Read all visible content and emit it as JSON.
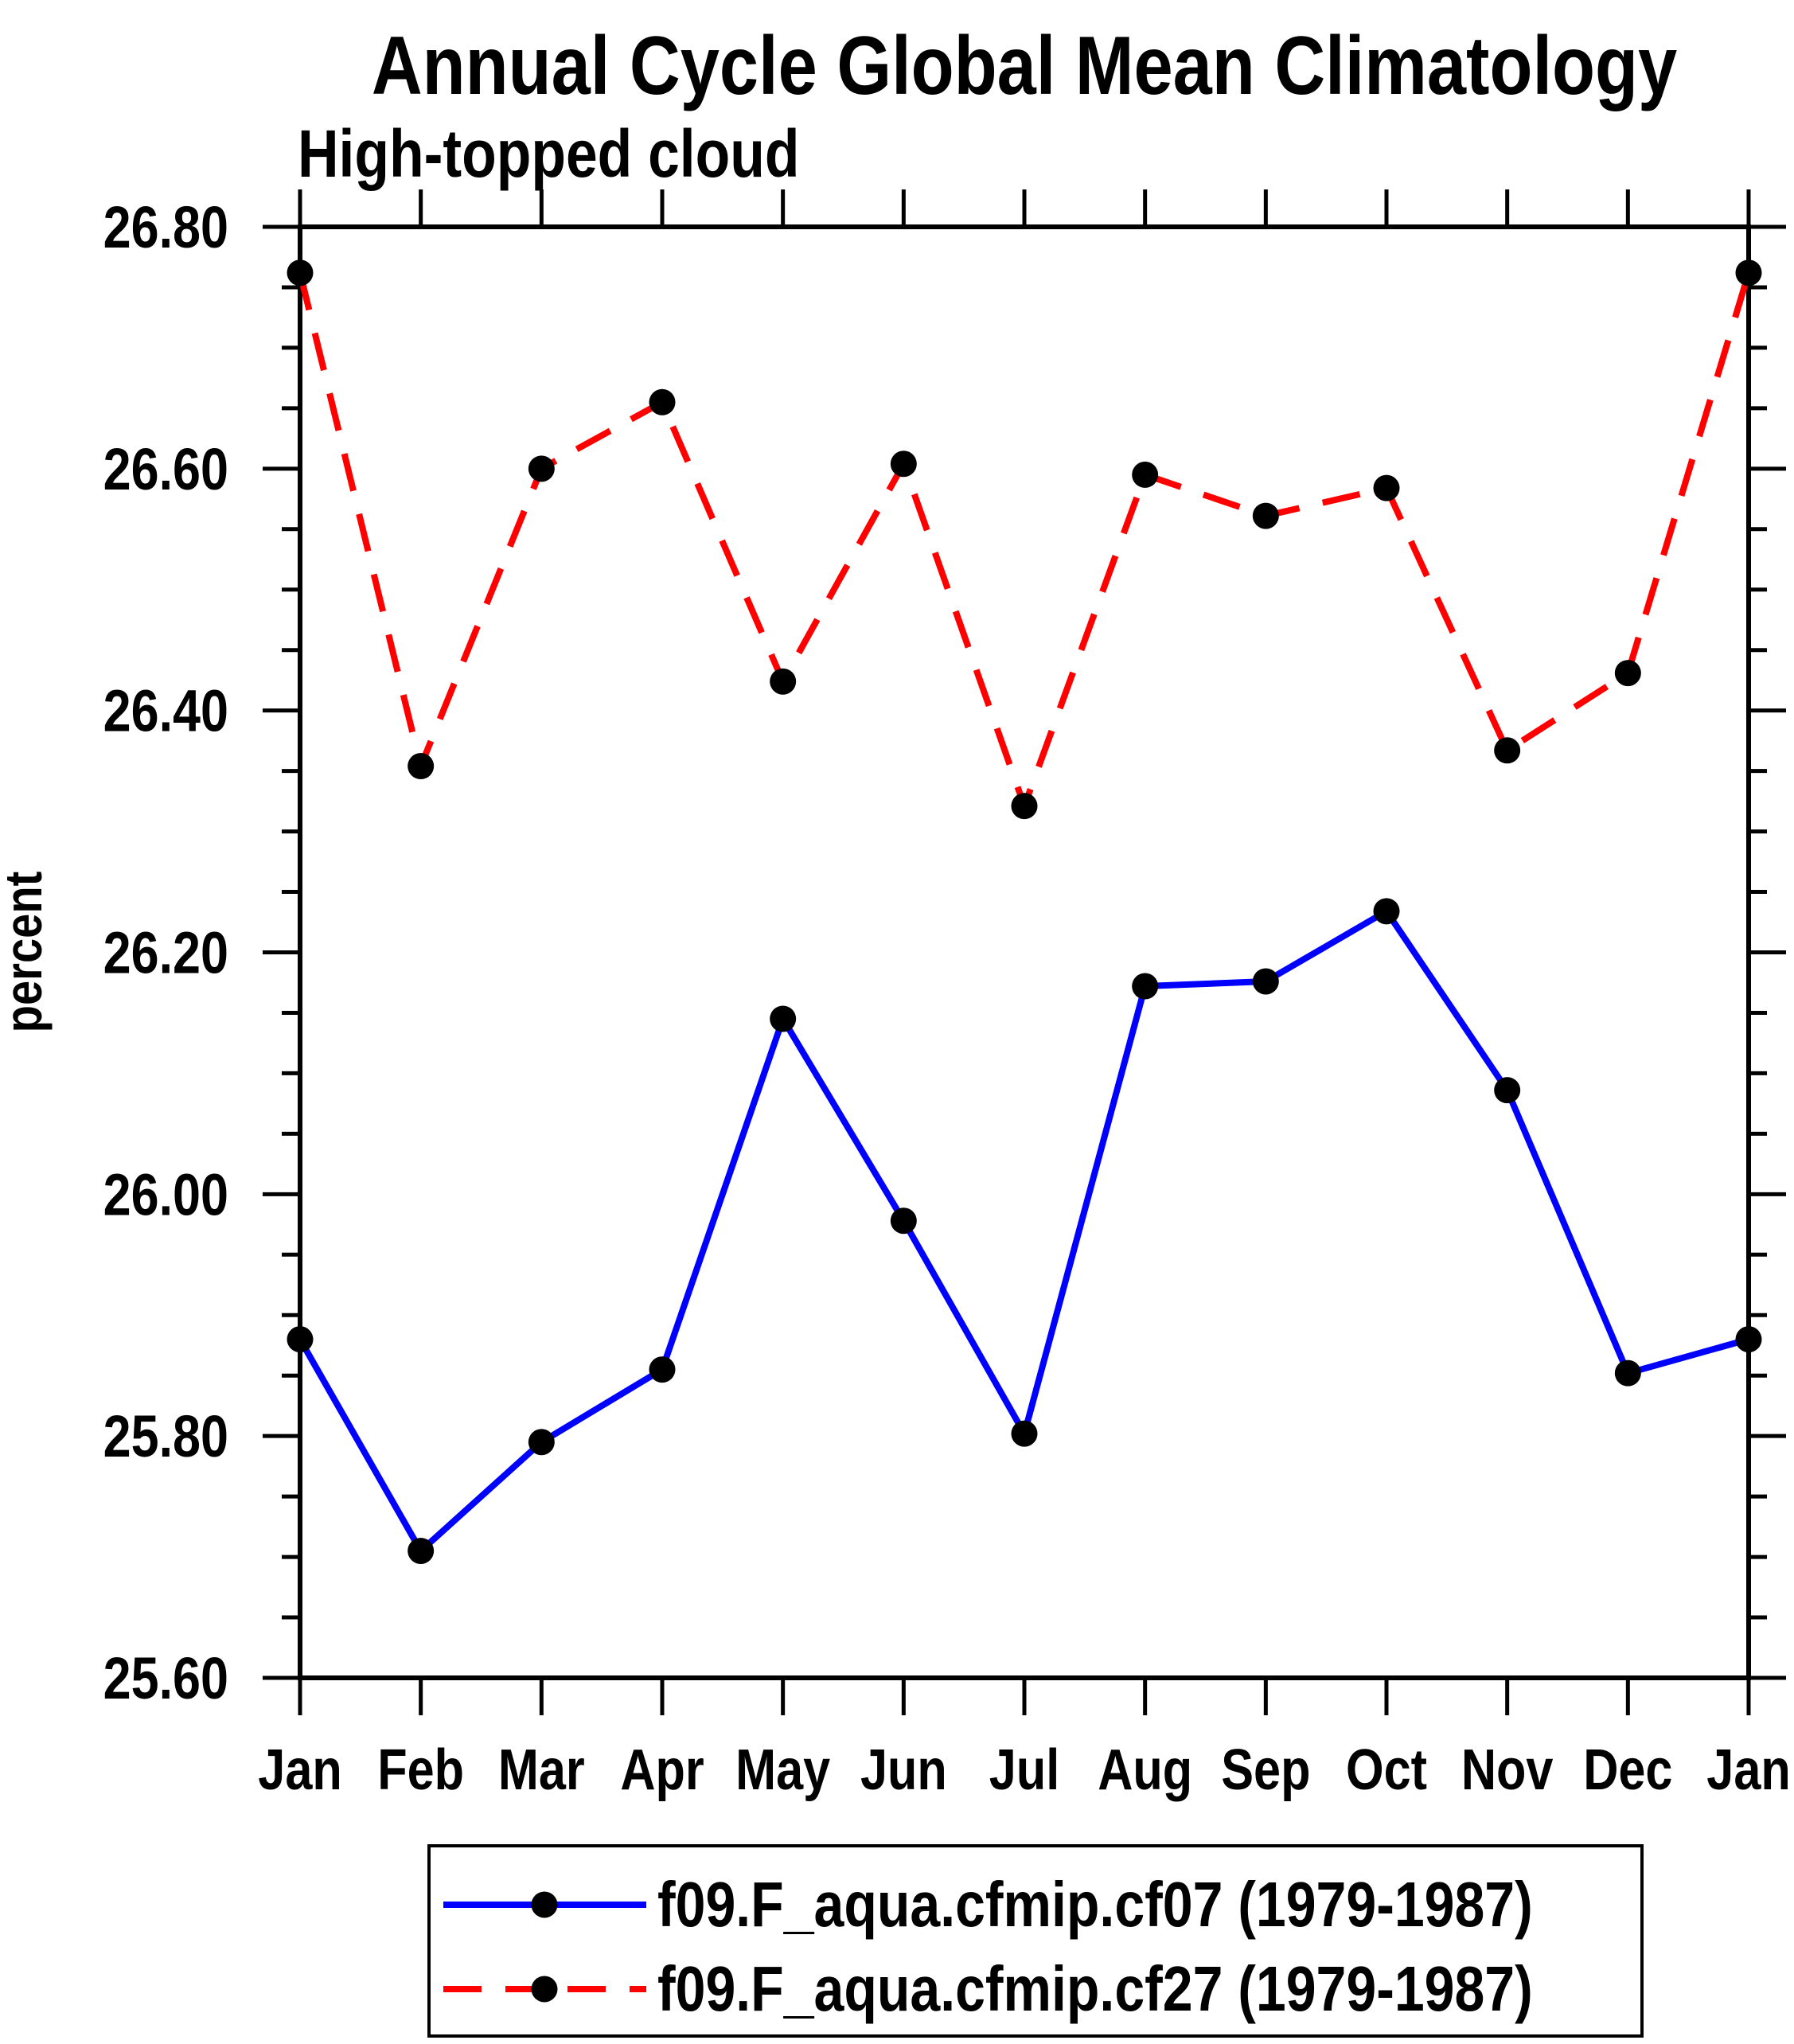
{
  "title": "Annual Cycle Global Mean Climatology",
  "subtitle": "High-topped cloud",
  "y_axis": {
    "label": "percent",
    "min": 25.6,
    "max": 26.8,
    "major_step": 0.2,
    "minor_step": 0.05,
    "tick_labels": [
      "25.60",
      "25.80",
      "26.00",
      "26.20",
      "26.40",
      "26.60",
      "26.80"
    ]
  },
  "x_axis": {
    "tick_labels": [
      "Jan",
      "Feb",
      "Mar",
      "Apr",
      "May",
      "Jun",
      "Jul",
      "Aug",
      "Sep",
      "Oct",
      "Nov",
      "Dec",
      "Jan"
    ]
  },
  "legend": {
    "entries": [
      {
        "label": "f09.F_aqua.cfmip.cf07 (1979-1987)",
        "line_color": "#0000ff",
        "line_style": "solid",
        "marker": "filled-circle",
        "marker_color": "#000000"
      },
      {
        "label": "f09.F_aqua.cfmip.cf27 (1979-1987)",
        "line_color": "#ff0000",
        "line_style": "dashed",
        "marker": "filled-circle",
        "marker_color": "#000000"
      }
    ]
  },
  "colors": {
    "background": "#ffffff",
    "axis": "#000000",
    "series_cf07": "#0000ff",
    "series_cf27": "#ff0000",
    "marker": "#000000"
  },
  "chart_data": {
    "type": "line",
    "title": "Annual Cycle Global Mean Climatology",
    "subtitle": "High-topped cloud",
    "ylabel": "percent",
    "xlabel": "",
    "ylim": [
      25.6,
      26.8
    ],
    "ytick_major": 0.2,
    "ytick_minor": 0.05,
    "grid": false,
    "legend_position": "bottom",
    "categories": [
      "Jan",
      "Feb",
      "Mar",
      "Apr",
      "May",
      "Jun",
      "Jul",
      "Aug",
      "Sep",
      "Oct",
      "Nov",
      "Dec",
      "Jan"
    ],
    "series": [
      {
        "name": "f09.F_aqua.cfmip.cf07 (1979-1987)",
        "color": "#0000ff",
        "style": "solid",
        "marker": "circle",
        "marker_color": "#000000",
        "values": [
          25.88,
          25.705,
          25.795,
          25.855,
          26.145,
          25.978,
          25.802,
          26.172,
          26.176,
          26.234,
          26.086,
          25.852,
          25.88
        ]
      },
      {
        "name": "f09.F_aqua.cfmip.cf27 (1979-1987)",
        "color": "#ff0000",
        "style": "dashed",
        "marker": "circle",
        "marker_color": "#000000",
        "values": [
          26.762,
          26.354,
          26.6,
          26.655,
          26.424,
          26.604,
          26.321,
          26.595,
          26.561,
          26.584,
          26.367,
          26.431,
          26.762
        ]
      }
    ]
  }
}
